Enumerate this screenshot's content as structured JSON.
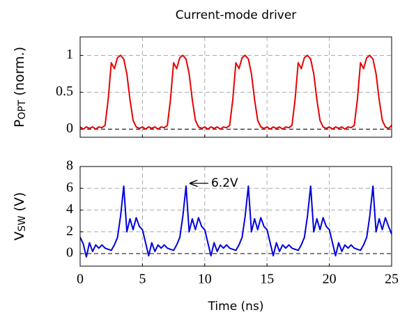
{
  "chart_data": [
    {
      "type": "line",
      "title": "Current-mode driver",
      "ylabel": [
        "P",
        "OPT",
        " (norm.)"
      ],
      "x": [
        0,
        0.25,
        0.5,
        0.75,
        1,
        1.25,
        1.5,
        1.75,
        2,
        2.25,
        2.5,
        2.75,
        3,
        3.25,
        3.5,
        3.75,
        4,
        4.25,
        4.5,
        4.75,
        5,
        5.25,
        5.5,
        5.75,
        6,
        6.25,
        6.5,
        6.75,
        7,
        7.25,
        7.5,
        7.75,
        8,
        8.25,
        8.5,
        8.75,
        9,
        9.25,
        9.5,
        9.75,
        10,
        10.25,
        10.5,
        10.75,
        11,
        11.25,
        11.5,
        11.75,
        12,
        12.25,
        12.5,
        12.75,
        13,
        13.25,
        13.5,
        13.75,
        14,
        14.25,
        14.5,
        14.75,
        15,
        15.25,
        15.5,
        15.75,
        16,
        16.25,
        16.5,
        16.75,
        17,
        17.25,
        17.5,
        17.75,
        18,
        18.25,
        18.5,
        18.75,
        19,
        19.25,
        19.5,
        19.75,
        20,
        20.25,
        20.5,
        20.75,
        21,
        21.25,
        21.5,
        21.75,
        22,
        22.25,
        22.5,
        22.75,
        23,
        23.25,
        23.5,
        23.75,
        24,
        24.25,
        24.5,
        24.75,
        25
      ],
      "values": [
        0.03,
        0.0,
        0.03,
        0.01,
        0.03,
        0.0,
        0.03,
        0.02,
        0.05,
        0.4,
        0.9,
        0.82,
        0.97,
        1.0,
        0.95,
        0.75,
        0.4,
        0.12,
        0.03,
        0.01,
        0.03,
        0.0,
        0.03,
        0.01,
        0.03,
        0.0,
        0.03,
        0.02,
        0.05,
        0.4,
        0.9,
        0.82,
        0.97,
        1.0,
        0.95,
        0.75,
        0.4,
        0.12,
        0.03,
        0.01,
        0.03,
        0.0,
        0.03,
        0.01,
        0.03,
        0.0,
        0.03,
        0.02,
        0.05,
        0.4,
        0.9,
        0.82,
        0.97,
        1.0,
        0.95,
        0.75,
        0.4,
        0.12,
        0.03,
        0.01,
        0.03,
        0.0,
        0.03,
        0.01,
        0.03,
        0.0,
        0.03,
        0.02,
        0.05,
        0.4,
        0.9,
        0.82,
        0.97,
        1.0,
        0.95,
        0.75,
        0.4,
        0.12,
        0.03,
        0.01,
        0.03,
        0.0,
        0.03,
        0.01,
        0.03,
        0.0,
        0.03,
        0.02,
        0.05,
        0.4,
        0.9,
        0.82,
        0.97,
        1.0,
        0.95,
        0.75,
        0.4,
        0.12,
        0.03,
        0.01,
        0.05
      ],
      "color": "#e60000",
      "xlim": [
        0,
        25
      ],
      "ylim": [
        -0.11,
        1.25
      ],
      "xticks": [
        0,
        5,
        10,
        15,
        20,
        25
      ],
      "yticks": [
        0,
        0.5,
        1
      ],
      "show_xtick_labels": false,
      "grid": true,
      "zero_line": true
    },
    {
      "type": "line",
      "ylabel": [
        "V",
        "SW",
        " (V)"
      ],
      "xlabel": "Time (ns)",
      "x": [
        0,
        0.25,
        0.5,
        0.75,
        1,
        1.25,
        1.5,
        1.75,
        2,
        2.25,
        2.5,
        2.75,
        3,
        3.25,
        3.5,
        3.75,
        4,
        4.25,
        4.5,
        4.75,
        5,
        5.25,
        5.5,
        5.75,
        6,
        6.25,
        6.5,
        6.75,
        7,
        7.25,
        7.5,
        7.75,
        8,
        8.25,
        8.5,
        8.75,
        9,
        9.25,
        9.5,
        9.75,
        10,
        10.25,
        10.5,
        10.75,
        11,
        11.25,
        11.5,
        11.75,
        12,
        12.25,
        12.5,
        12.75,
        13,
        13.25,
        13.5,
        13.75,
        14,
        14.25,
        14.5,
        14.75,
        15,
        15.25,
        15.5,
        15.75,
        16,
        16.25,
        16.5,
        16.75,
        17,
        17.25,
        17.5,
        17.75,
        18,
        18.25,
        18.5,
        18.75,
        19,
        19.25,
        19.5,
        19.75,
        20,
        20.25,
        20.5,
        20.75,
        21,
        21.25,
        21.5,
        21.75,
        22,
        22.25,
        22.5,
        22.75,
        23,
        23.25,
        23.5,
        23.75,
        24,
        24.25,
        24.5,
        24.75,
        25
      ],
      "values": [
        1.5,
        0.9,
        -0.3,
        1.0,
        0.2,
        0.8,
        0.5,
        0.8,
        0.5,
        0.4,
        0.3,
        0.8,
        1.5,
        3.5,
        6.2,
        2.0,
        3.2,
        2.2,
        3.3,
        2.5,
        2.2,
        1.0,
        -0.2,
        1.0,
        0.2,
        0.8,
        0.5,
        0.8,
        0.5,
        0.4,
        0.3,
        0.8,
        1.5,
        3.5,
        6.2,
        2.0,
        3.2,
        2.2,
        3.3,
        2.5,
        2.2,
        1.0,
        -0.2,
        1.0,
        0.2,
        0.8,
        0.5,
        0.8,
        0.5,
        0.4,
        0.3,
        0.8,
        1.5,
        3.5,
        6.2,
        2.0,
        3.2,
        2.2,
        3.3,
        2.5,
        2.2,
        1.0,
        -0.2,
        1.0,
        0.2,
        0.8,
        0.5,
        0.8,
        0.5,
        0.4,
        0.3,
        0.8,
        1.5,
        3.5,
        6.2,
        2.0,
        3.2,
        2.2,
        3.3,
        2.5,
        2.2,
        1.0,
        -0.2,
        1.0,
        0.2,
        0.8,
        0.5,
        0.8,
        0.5,
        0.4,
        0.3,
        0.8,
        1.5,
        3.5,
        6.2,
        2.0,
        3.2,
        2.2,
        3.3,
        2.5,
        1.8
      ],
      "color": "#0000dd",
      "xlim": [
        0,
        25
      ],
      "ylim": [
        -1.15,
        8
      ],
      "xticks": [
        0,
        5,
        10,
        15,
        20,
        25
      ],
      "yticks": [
        0,
        2,
        4,
        6,
        8
      ],
      "show_xtick_labels": true,
      "grid": true,
      "zero_line": true,
      "annotations": [
        {
          "text": "6.2V",
          "x": 8.5,
          "y": 6.2
        }
      ]
    }
  ]
}
